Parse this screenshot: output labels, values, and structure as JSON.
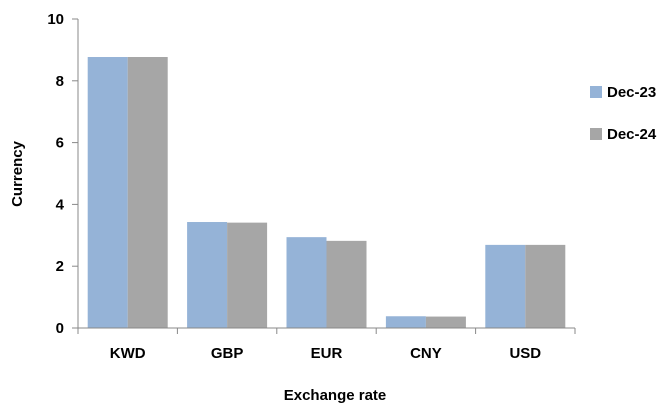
{
  "chart_data": {
    "type": "bar",
    "title": "",
    "xlabel": "Exchange rate",
    "ylabel": "Currency",
    "categories": [
      "KWD",
      "GBP",
      "EUR",
      "CNY",
      "USD"
    ],
    "series": [
      {
        "name": "Dec-23",
        "values": [
          8.77,
          3.43,
          2.94,
          0.38,
          2.69
        ],
        "color": "#95b3d7"
      },
      {
        "name": "Dec-24",
        "values": [
          8.77,
          3.41,
          2.82,
          0.37,
          2.69
        ],
        "color": "#a6a6a6"
      }
    ],
    "ylim": [
      0,
      10
    ],
    "yticks": [
      "0",
      "2",
      "4",
      "6",
      "8",
      "10"
    ],
    "grid": false,
    "legend_position": "right"
  }
}
